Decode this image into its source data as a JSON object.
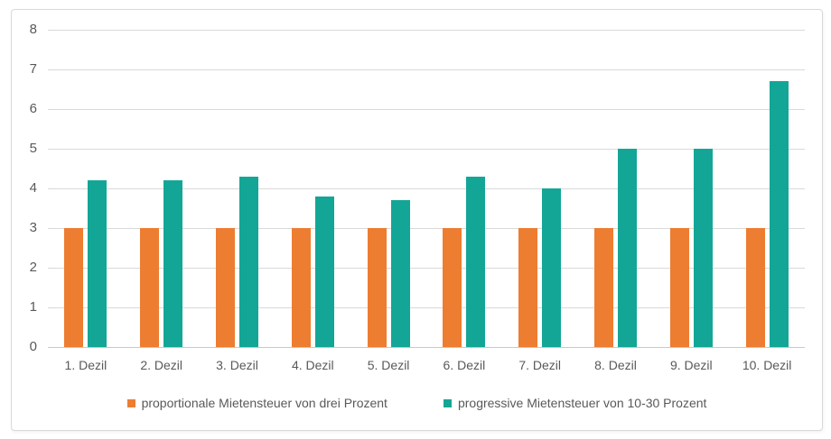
{
  "colors": {
    "background": "#ffffff",
    "frame_border": "#d9d9d9",
    "gridline": "#d9d9d9",
    "axis_line": "#c9c9c9",
    "text": "#595959",
    "series_proportional": "#ED7D31",
    "series_progressive": "#13A697"
  },
  "chart_data": {
    "type": "bar",
    "title": "",
    "xlabel": "",
    "ylabel": "",
    "ylim": [
      0,
      8
    ],
    "ytick_step": 1,
    "ytick_labels": [
      "0",
      "1",
      "2",
      "3",
      "4",
      "5",
      "6",
      "7",
      "8"
    ],
    "grid": true,
    "legend_position": "bottom",
    "categories": [
      "1. Dezil",
      "2. Dezil",
      "3. Dezil",
      "4. Dezil",
      "5. Dezil",
      "6. Dezil",
      "7. Dezil",
      "8. Dezil",
      "9. Dezil",
      "10. Dezil"
    ],
    "series": [
      {
        "name": "proportionale Mietensteuer von drei Prozent",
        "color": "#ED7D31",
        "values": [
          3,
          3,
          3,
          3,
          3,
          3,
          3,
          3,
          3,
          3
        ]
      },
      {
        "name": "progressive Mietensteuer von 10-30 Prozent",
        "color": "#13A697",
        "values": [
          4.2,
          4.2,
          4.3,
          3.8,
          3.7,
          4.3,
          4.0,
          5.0,
          5.0,
          6.7
        ]
      }
    ]
  }
}
